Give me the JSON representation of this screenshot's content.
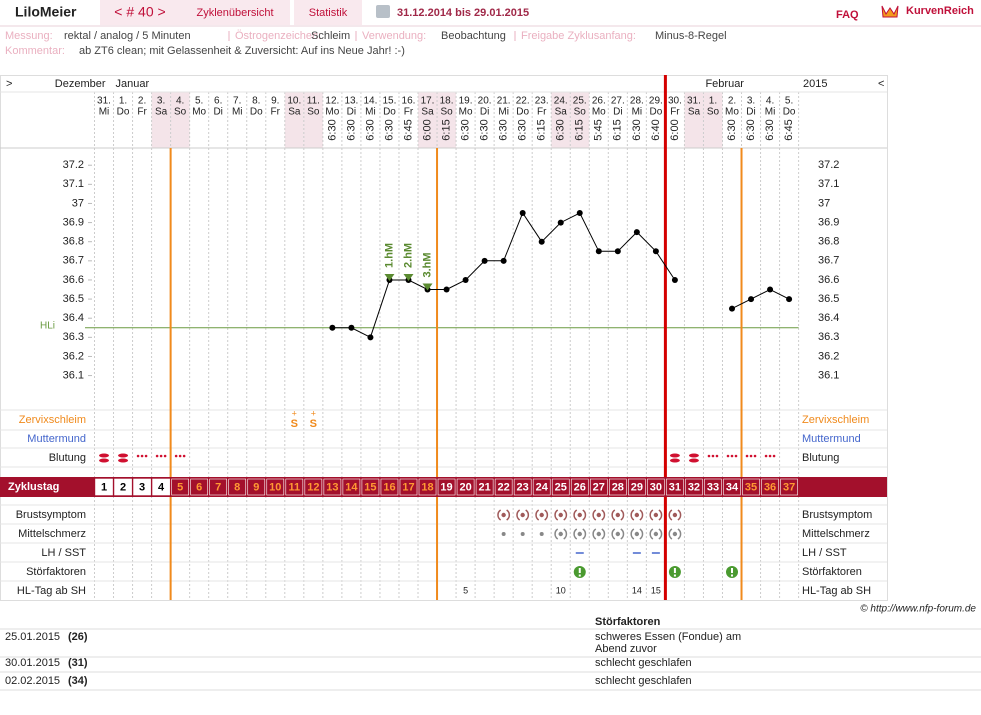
{
  "header": {
    "user": "LiloMeier",
    "cycle_nav": "< # 40 >",
    "tab_overview": "Zyklenübersicht",
    "tab_stats": "Statistik",
    "range": "31.12.2014 bis 29.01.2015",
    "faq": "FAQ",
    "logo": "KurvenReich"
  },
  "info": [
    {
      "label": "Messung:",
      "value": "rektal / analog / 5 Minuten"
    },
    {
      "label": "Östrogenzeichen:",
      "value": "Schleim"
    },
    {
      "label": "Verwendung:",
      "value": "Beobachtung"
    },
    {
      "label": "Freigabe Zyklusanfang:",
      "value": "Minus-8-Regel"
    }
  ],
  "comment": {
    "label": "Kommentar:",
    "value": "ab ZT6 clean; mit Gelassenheit & Zuversicht: Auf ins Neue Jahr! :-)"
  },
  "calendar": {
    "prev": ">",
    "next": "<",
    "year": "2015",
    "months": [
      {
        "label": "Dezember",
        "at": 0
      },
      {
        "label": "Januar",
        "at": 1
      },
      {
        "label": "Februar",
        "at": 32
      }
    ],
    "weekdays": [
      "Mi",
      "Do",
      "Fr",
      "Sa",
      "So",
      "Mo",
      "Di",
      "Mi",
      "Do",
      "Fr",
      "Sa",
      "So",
      "Mo",
      "Di",
      "Mi",
      "Do",
      "Fr",
      "Sa",
      "So",
      "Mo",
      "Di",
      "Mi",
      "Do",
      "Fr",
      "Sa",
      "So",
      "Mo",
      "Di",
      "Mi",
      "Do",
      "Fr",
      "Sa",
      "So",
      "Mo",
      "Di",
      "Mi",
      "Do"
    ],
    "times": [
      null,
      null,
      null,
      null,
      null,
      null,
      null,
      null,
      null,
      null,
      null,
      null,
      "6:30",
      "6:30",
      "6:30",
      "6:30",
      "6:45",
      "6:00",
      "6:15",
      "6:30",
      "6:30",
      "6:30",
      "6:30",
      "6:15",
      "6:30",
      "6:15",
      "5:45",
      "6:15",
      "6:30",
      "6:40",
      "6:00",
      null,
      null,
      "6:30",
      "6:30",
      "6:30",
      "6:45"
    ],
    "weekend_columns": [
      3,
      4,
      10,
      11,
      17,
      18,
      24,
      25,
      31,
      32
    ]
  },
  "chart_data": {
    "type": "line",
    "color": "#000000",
    "categories": [
      "31.",
      "1.",
      "2.",
      "3.",
      "4.",
      "5.",
      "6.",
      "7.",
      "8.",
      "9.",
      "10.",
      "11.",
      "12.",
      "13.",
      "14.",
      "15.",
      "16.",
      "17.",
      "18.",
      "19.",
      "20.",
      "21.",
      "22.",
      "23.",
      "24.",
      "25.",
      "26.",
      "27.",
      "28.",
      "29.",
      "30.",
      "31.",
      "1.",
      "2.",
      "3.",
      "4.",
      "5."
    ],
    "values": [
      null,
      null,
      null,
      null,
      null,
      null,
      null,
      null,
      null,
      null,
      null,
      null,
      36.35,
      36.35,
      36.3,
      36.6,
      36.6,
      36.55,
      36.55,
      36.6,
      36.7,
      36.7,
      36.95,
      36.8,
      36.9,
      36.95,
      36.75,
      36.75,
      36.85,
      36.75,
      36.6,
      null,
      null,
      36.45,
      36.5,
      36.55,
      36.5
    ],
    "ylim": [
      35.92,
      37.29
    ],
    "yticks": [
      36.1,
      36.2,
      36.3,
      36.4,
      36.5,
      36.6,
      36.7,
      36.8,
      36.9,
      37,
      37.1,
      37.2
    ],
    "hline": {
      "label": "HLi",
      "value": 36.35,
      "color": "#6a9a40"
    },
    "annotations": [
      {
        "label": "1.hM",
        "at": 15
      },
      {
        "label": "2.hM",
        "at": 16
      },
      {
        "label": "3.hM",
        "at": 17
      }
    ],
    "vlines": [
      {
        "at": 4,
        "color": "#f08a1c"
      },
      {
        "at": 18,
        "color": "#f08a1c"
      },
      {
        "at": 30,
        "color": "#d40000"
      },
      {
        "at": 34,
        "color": "#f08a1c"
      }
    ]
  },
  "rows_top": [
    "Zervixschleim",
    "Muttermund",
    "Blutung"
  ],
  "zervix": [
    null,
    null,
    null,
    null,
    null,
    null,
    null,
    null,
    null,
    null,
    {
      "sup": "+",
      "sym": "S"
    },
    {
      "sup": "+",
      "sym": "S"
    },
    null,
    null,
    null,
    null,
    null,
    null,
    null,
    null,
    null,
    null,
    null,
    null,
    null,
    null,
    null,
    null,
    null,
    null,
    null,
    null,
    null,
    null,
    null,
    null,
    null
  ],
  "cycle_label": "Zyklustag",
  "cycle_days": [
    1,
    2,
    3,
    4,
    5,
    6,
    7,
    8,
    9,
    10,
    11,
    12,
    13,
    14,
    15,
    16,
    17,
    18,
    19,
    20,
    21,
    22,
    23,
    24,
    25,
    26,
    27,
    28,
    29,
    30,
    31,
    32,
    33,
    34,
    35,
    36,
    37
  ],
  "cycle_day_fills": [
    "#ffffff",
    "#ffffff",
    "#ffffff",
    "#ffffff",
    "#a3102c",
    "#a3102c",
    "#a3102c",
    "#a3102c",
    "#a3102c",
    "#a3102c",
    "#a3102c",
    "#a3102c",
    "#a3102c",
    "#a3102c",
    "#a3102c",
    "#a3102c",
    "#a3102c",
    "#a3102c",
    "#a3102c",
    "#a3102c",
    "#a3102c",
    "#a3102c",
    "#a3102c",
    "#a3102c",
    "#a3102c",
    "#a3102c",
    "#a3102c",
    "#a3102c",
    "#a3102c",
    "#a3102c",
    "#a3102c",
    "#a3102c",
    "#a3102c",
    "#a3102c",
    "#a3102c",
    "#a3102c",
    "#a3102c"
  ],
  "cycle_day_colors": [
    "#000000",
    "#000000",
    "#000000",
    "#000000",
    "#ff9933",
    "#ff9933",
    "#ff9933",
    "#ff9933",
    "#ff9933",
    "#ff9933",
    "#ff9933",
    "#ff9933",
    "#ff9933",
    "#ff9933",
    "#ff9933",
    "#ff9933",
    "#ff9933",
    "#ff9933",
    "#ffffff",
    "#ffffff",
    "#ffffff",
    "#ffffff",
    "#ffffff",
    "#ffffff",
    "#ffffff",
    "#ffffff",
    "#ffffff",
    "#ffffff",
    "#ffffff",
    "#ffffff",
    "#ffffff",
    "#ffffff",
    "#ffffff",
    "#ffffff",
    "#ff9933",
    "#ff9933",
    "#ff9933"
  ],
  "rows_bottom": [
    "Brustsymptom",
    "Mittelschmerz",
    "LH / SST",
    "Störfaktoren",
    "HL-Tag ab SH"
  ],
  "hl_day": [
    null,
    null,
    null,
    null,
    null,
    null,
    null,
    null,
    null,
    null,
    null,
    null,
    null,
    null,
    null,
    null,
    null,
    null,
    null,
    5,
    null,
    null,
    null,
    null,
    10,
    null,
    null,
    null,
    14,
    15,
    null,
    null,
    null,
    null,
    null,
    null,
    null
  ],
  "credit": "© http://www.nfp-forum.de",
  "disturbances": {
    "title": "Störfaktoren",
    "rows": [
      {
        "date": "25.01.2015",
        "day": "(26)",
        "text": "schweres Essen (Fondue) am Abend zuvor"
      },
      {
        "date": "30.01.2015",
        "day": "(31)",
        "text": "schlecht geschlafen"
      },
      {
        "date": "02.02.2015",
        "day": "(34)",
        "text": "schlecht geschlafen"
      }
    ]
  }
}
